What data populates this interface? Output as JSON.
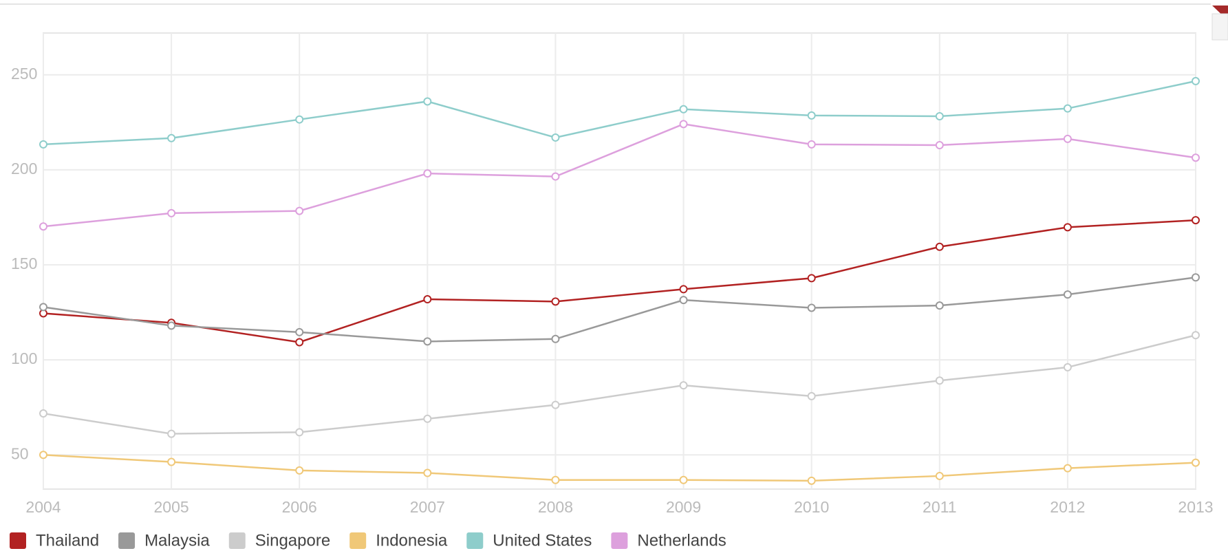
{
  "chart_data": {
    "type": "line",
    "categories": [
      "2004",
      "2005",
      "2006",
      "2007",
      "2008",
      "2009",
      "2010",
      "2011",
      "2012",
      "2013"
    ],
    "series": [
      {
        "name": "Thailand",
        "color": "#b22222",
        "values": [
          124.5,
          119.5,
          109.3,
          131.9,
          130.7,
          137.2,
          143,
          159.5,
          169.8,
          173.5
        ]
      },
      {
        "name": "Malaysia",
        "color": "#999999",
        "values": [
          127.8,
          118,
          114.6,
          109.7,
          111,
          131.5,
          127.4,
          128.6,
          134.4,
          143.4
        ]
      },
      {
        "name": "Singapore",
        "color": "#cccccc",
        "values": [
          71.8,
          61.1,
          61.9,
          69,
          76.3,
          86.6,
          80.9,
          89.1,
          96.1,
          113
        ]
      },
      {
        "name": "Indonesia",
        "color": "#f0c878",
        "values": [
          50,
          46.3,
          41.8,
          40.5,
          36.8,
          36.8,
          36.4,
          38.9,
          43,
          45.9
        ]
      },
      {
        "name": "United States",
        "color": "#8ecdcb",
        "values": [
          213.4,
          216.7,
          226.5,
          236,
          217,
          231.9,
          228.6,
          228.2,
          232.3,
          246.7
        ]
      },
      {
        "name": "Netherlands",
        "color": "#dda0dd",
        "values": [
          170.2,
          177.2,
          178.4,
          198.1,
          196.5,
          224.1,
          213.4,
          213,
          216.3,
          206.4
        ]
      }
    ],
    "ylim": [
      32,
      272
    ],
    "yticks": [
      50,
      100,
      150,
      200,
      250
    ],
    "grid": true,
    "legend": "bottom"
  }
}
